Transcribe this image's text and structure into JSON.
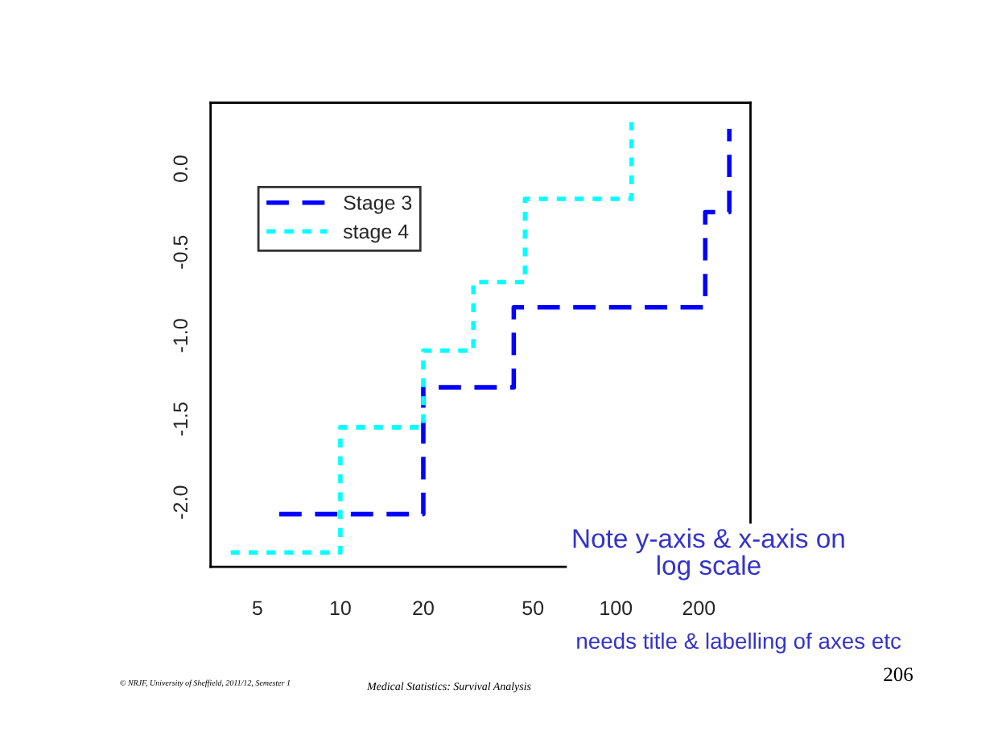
{
  "chart_data": {
    "type": "step",
    "log": "x",
    "xlim": [
      3.38,
      308
    ],
    "ylim": [
      -2.386,
      0.396
    ],
    "xticks": [
      5,
      10,
      20,
      50,
      100,
      200
    ],
    "yticks": [
      {
        "value": -2,
        "label": "-2.0"
      },
      {
        "value": -1.5,
        "label": "-1.5"
      },
      {
        "value": -1,
        "label": "-1.0"
      },
      {
        "value": -0.5,
        "label": "-0.5"
      },
      {
        "value": 0,
        "label": "0.0"
      }
    ],
    "series": [
      {
        "name": "Stage 3",
        "color": "#0000ff",
        "line_style": "dashed",
        "x": [
          6,
          20,
          42.6,
          211,
          258
        ],
        "values": [
          -2.07,
          -1.31,
          -0.83,
          -0.26,
          0.24
        ]
      },
      {
        "name": "stage 4",
        "color": "#00ffff",
        "line_style": "dotted",
        "x": [
          4.0,
          10,
          20,
          30.4,
          46.8,
          114
        ],
        "values": [
          -2.3,
          -1.55,
          -1.09,
          -0.68,
          -0.18,
          0.28
        ]
      }
    ],
    "legend": "top left",
    "grid": false,
    "annotations": [
      "Note y-axis & x-axis on\nlog scale",
      "needs title & labelling of axes etc",
      "© NRJF, University of Sheffield, 2011/12, Semester 1",
      "Medical Statistics: Survival Analysis",
      "206"
    ]
  }
}
